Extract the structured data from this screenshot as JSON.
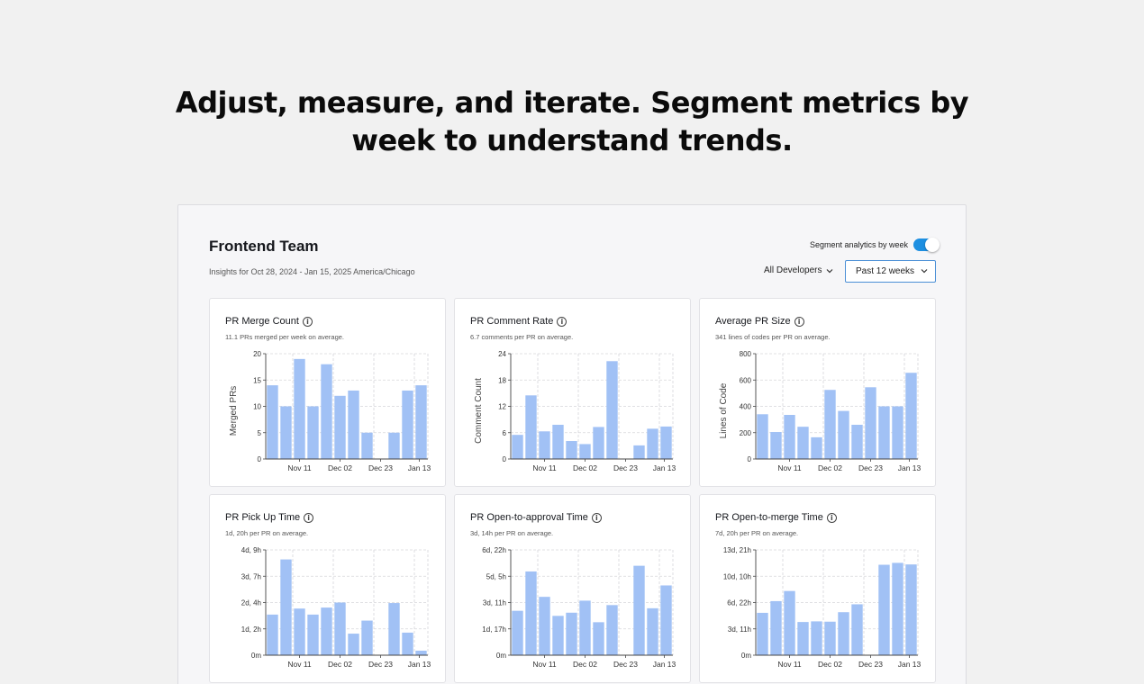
{
  "headline": {
    "line1": "Adjust, measure, and iterate. Segment metrics by",
    "line2": "week to understand trends."
  },
  "panel": {
    "title": "Frontend Team",
    "insights": "Insights for Oct 28, 2024 - Jan 15, 2025 America/Chicago",
    "segment_label": "Segment analytics by week",
    "segment_on": true,
    "developers_label": "All Developers",
    "range_label": "Past 12 weeks",
    "accent": "#1d8fe1",
    "bar_color": "#a1c1f5"
  },
  "chart_data": [
    {
      "type": "bar",
      "title": "PR Merge Count",
      "subtitle": "11.1 PRs merged per week on average.",
      "ylabel": "Merged PRs",
      "ylim": [
        0,
        20
      ],
      "yticks": [
        "0",
        "5",
        "10",
        "15",
        "20"
      ],
      "xticks": [
        "Nov 11",
        "Dec 02",
        "Dec 23",
        "Jan 13"
      ],
      "values": [
        14,
        10,
        19,
        10,
        18,
        12,
        13,
        5,
        0,
        5,
        13,
        14
      ]
    },
    {
      "type": "bar",
      "title": "PR Comment Rate",
      "subtitle": "6.7 comments per PR on average.",
      "ylabel": "Comment Count",
      "ylim": [
        0,
        24
      ],
      "yticks": [
        "0",
        "6",
        "12",
        "18",
        "24"
      ],
      "xticks": [
        "Nov 11",
        "Dec 02",
        "Dec 23",
        "Jan 13"
      ],
      "values": [
        5.5,
        14.5,
        6.3,
        7.8,
        4.1,
        3.4,
        7.3,
        22.3,
        0,
        3.1,
        6.9,
        7.4
      ]
    },
    {
      "type": "bar",
      "title": "Average PR Size",
      "subtitle": "341 lines of codes per PR on average.",
      "ylabel": "Lines of Code",
      "ylim": [
        0,
        800
      ],
      "yticks": [
        "0",
        "200",
        "400",
        "600",
        "800"
      ],
      "xticks": [
        "Nov 11",
        "Dec 02",
        "Dec 23",
        "Jan 13"
      ],
      "values": [
        340,
        205,
        335,
        245,
        165,
        525,
        365,
        260,
        545,
        400,
        400,
        655
      ]
    },
    {
      "type": "bar",
      "title": "PR Pick Up Time",
      "subtitle": "1d, 20h per PR on average.",
      "ylabel": "",
      "ylim": [
        0,
        105
      ],
      "yticks": [
        "0m",
        "1d, 2h",
        "2d, 4h",
        "3d, 7h",
        "4d, 9h"
      ],
      "xticks": [
        "Nov 11",
        "Dec 02",
        "Dec 23",
        "Jan 13"
      ],
      "values": [
        40.5,
        95.5,
        46.5,
        40.5,
        47.5,
        52.5,
        21.5,
        34.5,
        0,
        52,
        22.5,
        4.5
      ]
    },
    {
      "type": "bar",
      "title": "PR Open-to-approval Time",
      "subtitle": "3d, 14h per PR on average.",
      "ylabel": "",
      "ylim": [
        0,
        166
      ],
      "yticks": [
        "0m",
        "1d, 17h",
        "3d, 11h",
        "5d, 5h",
        "6d, 22h"
      ],
      "xticks": [
        "Nov 11",
        "Dec 02",
        "Dec 23",
        "Jan 13"
      ],
      "values": [
        70,
        132,
        92,
        62,
        67,
        86,
        52,
        79,
        0,
        141,
        74,
        110
      ]
    },
    {
      "type": "bar",
      "title": "PR Open-to-merge Time",
      "subtitle": "7d, 20h per PR on average.",
      "ylabel": "",
      "ylim": [
        0,
        333
      ],
      "yticks": [
        "0m",
        "3d, 11h",
        "6d, 22h",
        "10d, 10h",
        "13d, 21h"
      ],
      "xticks": [
        "Nov 11",
        "Dec 02",
        "Dec 23",
        "Jan 13"
      ],
      "values": [
        134,
        171,
        203,
        105,
        107,
        106,
        136,
        161,
        0,
        286,
        292,
        287
      ]
    }
  ]
}
